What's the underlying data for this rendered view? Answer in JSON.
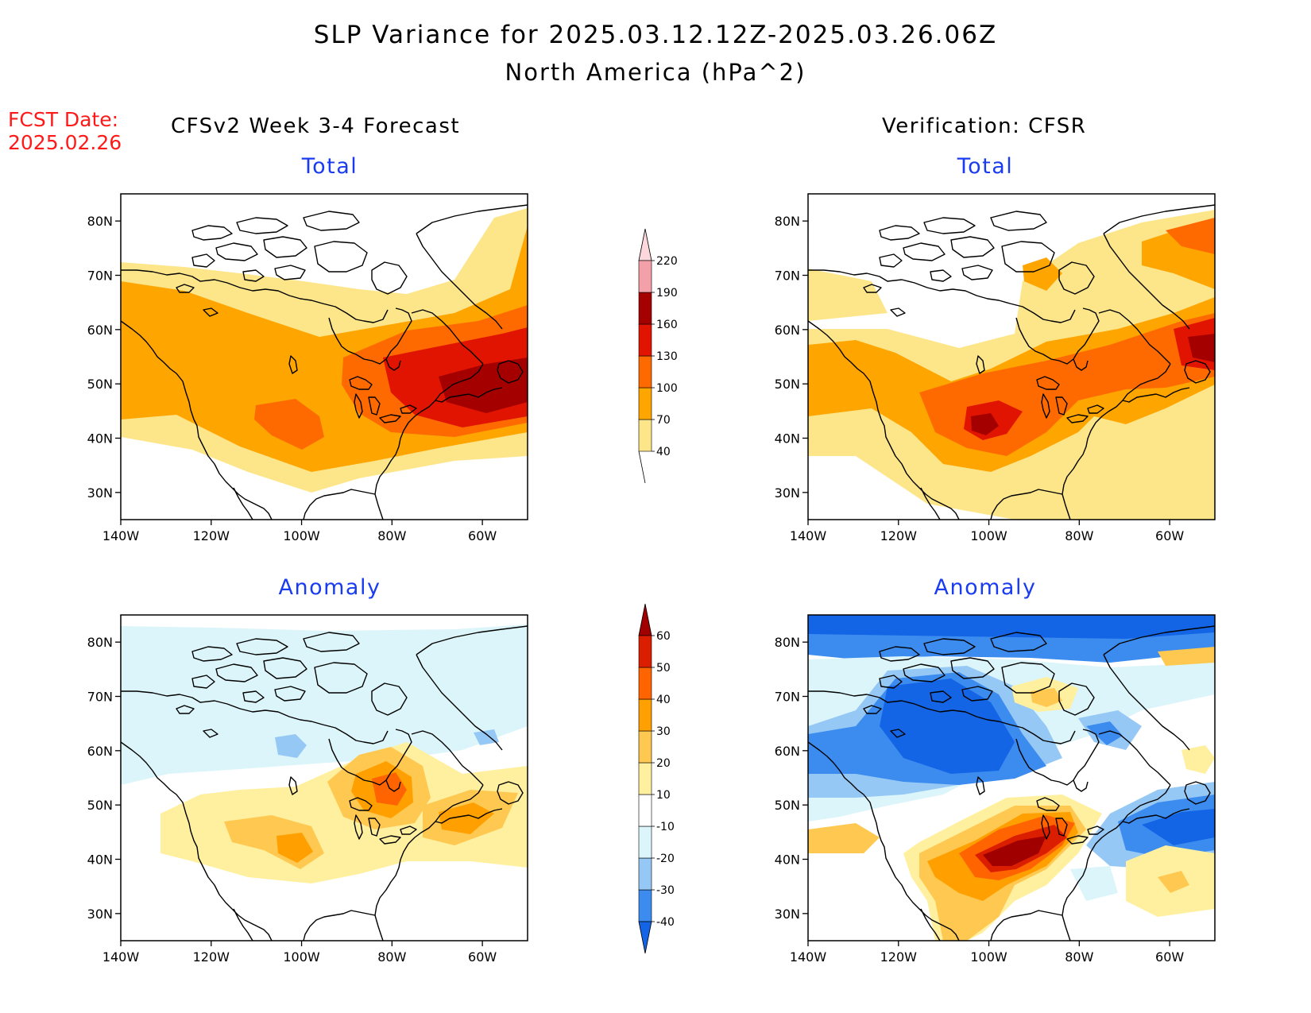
{
  "header": {
    "title": "SLP Variance for 2025.03.12.12Z-2025.03.26.06Z",
    "subtitle": "North America (hPa^2)",
    "fcst_label": "FCST Date:",
    "fcst_date": "2025.02.26"
  },
  "columns": {
    "left": "CFSv2 Week 3-4 Forecast",
    "right": "Verification: CFSR"
  },
  "panels": {
    "fc_total": "Total",
    "fc_anom": "Anomaly",
    "ver_total": "Total",
    "ver_anom": "Anomaly"
  },
  "axes": {
    "lat_labels": [
      "80N",
      "70N",
      "60N",
      "50N",
      "40N",
      "30N"
    ],
    "lon_labels": [
      "140W",
      "120W",
      "100W",
      "80W",
      "60W"
    ],
    "lon_range": [
      -140,
      -50
    ],
    "lat_range": [
      25,
      85
    ]
  },
  "total_colorbar": {
    "labels": [
      "40",
      "70",
      "100",
      "130",
      "160",
      "190",
      "220"
    ],
    "colors": [
      "#fde68a",
      "#ffa500",
      "#ff6a00",
      "#e01400",
      "#a50000",
      "#f3a0a8",
      "#fcd8dc"
    ]
  },
  "anomaly_colorbar": {
    "labels": [
      "-40",
      "-30",
      "-20",
      "-10",
      "10",
      "20",
      "30",
      "40",
      "50",
      "60"
    ],
    "colors": [
      "#1464e6",
      "#3c8cf0",
      "#96c8f5",
      "#dcf5fa",
      "#ffffff",
      "#fff0a0",
      "#ffc850",
      "#ffa000",
      "#ff6400",
      "#dc1e00",
      "#a00000"
    ]
  },
  "colors": {
    "title_blue": "#1a3cf0",
    "fcst_red": "#ff1a1a"
  }
}
